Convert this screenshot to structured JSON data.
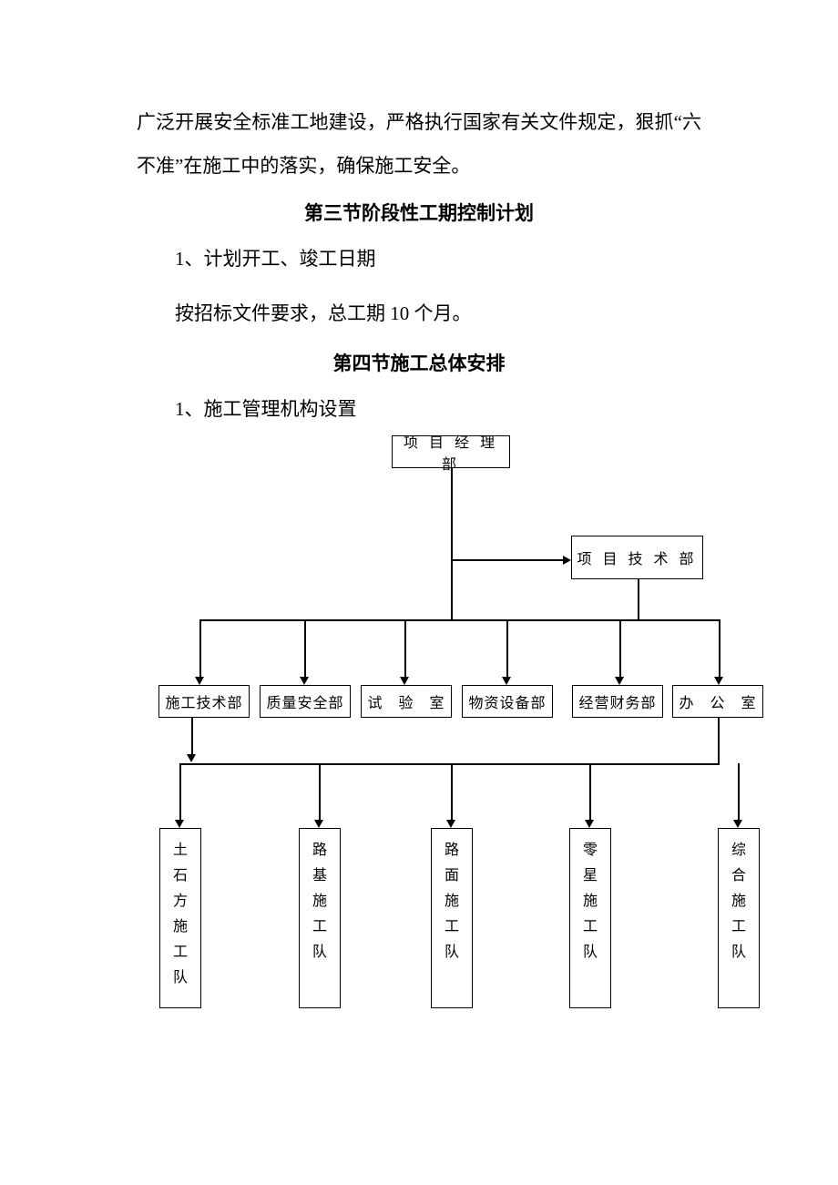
{
  "para1": "广泛开展安全标准工地建设，严格执行国家有关文件规定，狠抓“六不准”在施工中的落实，确保施工安全。",
  "heading3": "第三节阶段性工期控制计划",
  "sub3_1": "1、计划开工、竣工日期",
  "sub3_2": "按招标文件要求，总工期 10 个月。",
  "heading4": "第四节施工总体安排",
  "sub4_1": "1、施工管理机构设置",
  "chart": {
    "top": {
      "label": "项 目 经 理 部"
    },
    "tech": {
      "label": "项 目 技 术 部"
    },
    "row2": [
      {
        "label": "施工技术部"
      },
      {
        "label": "质量安全部"
      },
      {
        "label": "试　验　室"
      },
      {
        "label": "物资设备部"
      },
      {
        "label": "经营财务部"
      },
      {
        "label": "办　公　室"
      }
    ],
    "row3": [
      {
        "chars": [
          "土",
          "石",
          "方",
          "施",
          "工",
          "队"
        ]
      },
      {
        "chars": [
          "路",
          "基",
          "施",
          "工",
          "队"
        ]
      },
      {
        "chars": [
          "路",
          "面",
          "施",
          "工",
          "队"
        ]
      },
      {
        "chars": [
          "零",
          "星",
          "施",
          "工",
          "队"
        ]
      },
      {
        "chars": [
          "综",
          "合",
          "施",
          "工",
          "队"
        ]
      }
    ],
    "colors": {
      "border": "#000000",
      "bg": "#ffffff",
      "text": "#000000"
    }
  }
}
